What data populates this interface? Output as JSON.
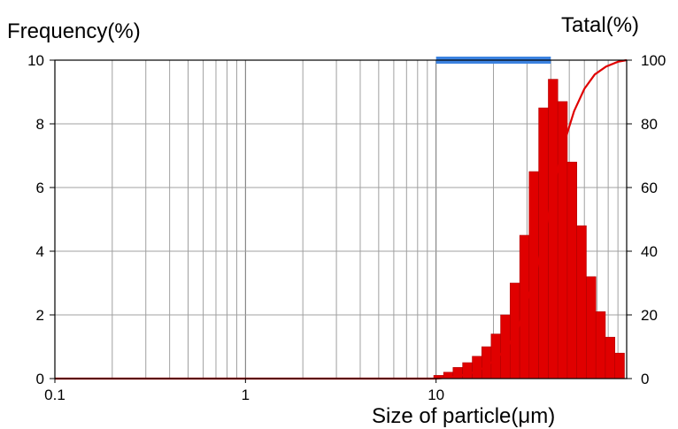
{
  "chart_data": {
    "type": "bar",
    "title": "",
    "ylabel_left": "Frequency(%)",
    "ylabel_right": "Tatal(%)",
    "xlabel": "Size of particle(μm)",
    "x_scale": "log",
    "xlim": [
      0.1,
      100
    ],
    "ylim_left": [
      0,
      10
    ],
    "ylim_right": [
      0,
      100
    ],
    "x_tick_labels": [
      "0.1",
      "1",
      "10"
    ],
    "x_tick_values": [
      0.1,
      1,
      10
    ],
    "y_left_ticks": [
      "0",
      "2",
      "4",
      "6",
      "8",
      "10"
    ],
    "y_right_ticks": [
      "0",
      "20",
      "40",
      "60",
      "80",
      "100"
    ],
    "grid": true,
    "range_band": {
      "from": 10,
      "to": 40,
      "color": "#3b82e0"
    },
    "series": [
      {
        "kind": "histogram",
        "axis": "left",
        "color": "#e00000",
        "bin_width_log10": 0.05,
        "bins": [
          {
            "x": 10.3,
            "y": 0.1
          },
          {
            "x": 11.6,
            "y": 0.2
          },
          {
            "x": 13.0,
            "y": 0.35
          },
          {
            "x": 14.6,
            "y": 0.5
          },
          {
            "x": 16.4,
            "y": 0.7
          },
          {
            "x": 18.4,
            "y": 1.0
          },
          {
            "x": 20.6,
            "y": 1.4
          },
          {
            "x": 23.1,
            "y": 2.0
          },
          {
            "x": 25.9,
            "y": 3.0
          },
          {
            "x": 29.1,
            "y": 4.5
          },
          {
            "x": 32.6,
            "y": 6.5
          },
          {
            "x": 36.6,
            "y": 8.5
          },
          {
            "x": 41.1,
            "y": 9.4
          },
          {
            "x": 46.1,
            "y": 8.7
          },
          {
            "x": 51.7,
            "y": 6.8
          },
          {
            "x": 58.0,
            "y": 4.8
          },
          {
            "x": 65.1,
            "y": 3.2
          },
          {
            "x": 73.0,
            "y": 2.1
          },
          {
            "x": 81.9,
            "y": 1.3
          },
          {
            "x": 91.9,
            "y": 0.8
          }
        ]
      },
      {
        "kind": "line",
        "axis": "right",
        "color": "#e00000",
        "x": [
          0.1,
          10,
          12,
          15,
          18,
          21,
          24,
          27,
          30,
          34,
          38,
          42,
          47,
          53,
          60,
          68,
          78,
          90,
          100
        ],
        "y": [
          0,
          0,
          0.4,
          1.5,
          3.5,
          6.5,
          10.5,
          16,
          24,
          35,
          48,
          62,
          74,
          84,
          91,
          95.5,
          98,
          99.5,
          100
        ]
      }
    ]
  }
}
